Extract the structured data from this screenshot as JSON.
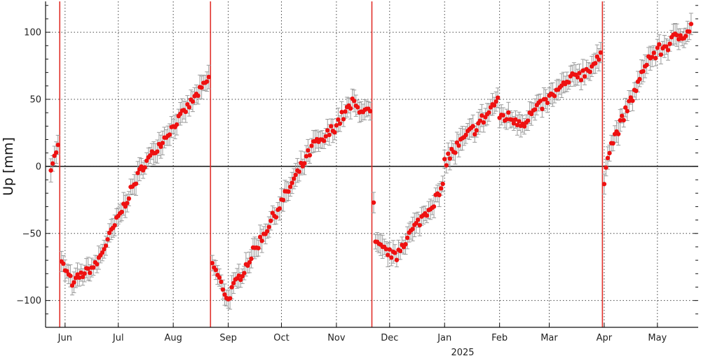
{
  "chart_data": {
    "type": "scatter",
    "title": "",
    "xlabel": "2025",
    "ylabel": "Up [mm]",
    "ylim": [
      -120,
      123
    ],
    "xlim": [
      "2024-05-21",
      "2025-05-24"
    ],
    "grid": true,
    "zero_line": true,
    "y_ticks": [
      {
        "value": 100,
        "label": "100"
      },
      {
        "value": 50,
        "label": "50"
      },
      {
        "value": 0,
        "label": "0"
      },
      {
        "value": -50,
        "label": "−50"
      },
      {
        "value": -100,
        "label": "−100"
      }
    ],
    "x_ticks": [
      {
        "date": "2024-06-01",
        "label": "Jun"
      },
      {
        "date": "2024-07-01",
        "label": "Jul"
      },
      {
        "date": "2024-08-01",
        "label": "Aug"
      },
      {
        "date": "2024-09-01",
        "label": "Sep"
      },
      {
        "date": "2024-10-01",
        "label": "Oct"
      },
      {
        "date": "2024-11-01",
        "label": "Nov"
      },
      {
        "date": "2024-12-01",
        "label": "Dec"
      },
      {
        "date": "2025-01-01",
        "label": "Jan"
      },
      {
        "date": "2025-02-01",
        "label": "Feb"
      },
      {
        "date": "2025-03-01",
        "label": "Mar"
      },
      {
        "date": "2025-04-01",
        "label": "Apr"
      },
      {
        "date": "2025-05-01",
        "label": "May"
      }
    ],
    "vertical_lines": [
      "2024-05-29",
      "2024-08-22",
      "2024-11-21",
      "2025-03-31"
    ],
    "colors": {
      "points": "#ee1111",
      "vlines": "#e0302a",
      "errorbars": "#9a9a9a",
      "grid": "#444444",
      "zero_line": "#111111"
    },
    "series": [
      {
        "segments": [
          {
            "x": [
              "2024-05-24",
              "2024-05-28"
            ],
            "y": [
              -1,
              15
            ],
            "noise": 2.0
          },
          {
            "x": [
              "2024-05-30",
              "2024-06-06"
            ],
            "y": [
              -72,
              -89
            ],
            "noise": 3.0
          },
          {
            "x": [
              "2024-06-07",
              "2024-06-18"
            ],
            "y": [
              -84,
              -74
            ],
            "noise": 3.0
          },
          {
            "x": [
              "2024-06-19",
              "2024-07-14"
            ],
            "y": [
              -72,
              -2
            ],
            "noise": 3.5
          },
          {
            "x": [
              "2024-07-15",
              "2024-08-21"
            ],
            "y": [
              0,
              65
            ],
            "noise": 3.0
          },
          {
            "x": [
              "2024-08-23",
              "2024-09-01"
            ],
            "y": [
              -72,
              -100
            ],
            "noise": 3.0
          },
          {
            "x": [
              "2024-09-02",
              "2024-10-21"
            ],
            "y": [
              -95,
              20
            ],
            "noise": 4.0
          },
          {
            "x": [
              "2024-10-22",
              "2024-11-11"
            ],
            "y": [
              15,
              48
            ],
            "noise": 4.5
          },
          {
            "x": [
              "2024-11-12",
              "2024-11-20"
            ],
            "y": [
              44,
              40
            ],
            "noise": 3.0
          },
          {
            "x": [
              "2024-11-22",
              "2024-11-22"
            ],
            "y": [
              -27,
              -27
            ],
            "noise": 0
          },
          {
            "x": [
              "2024-11-23",
              "2024-12-05"
            ],
            "y": [
              -58,
              -68
            ],
            "noise": 3.0
          },
          {
            "x": [
              "2024-12-06",
              "2024-12-31"
            ],
            "y": [
              -62,
              -17
            ],
            "noise": 4.0
          },
          {
            "x": [
              "2025-01-01",
              "2025-01-26"
            ],
            "y": [
              4,
              40
            ],
            "noise": 5.0
          },
          {
            "x": [
              "2025-01-27",
              "2025-01-31"
            ],
            "y": [
              44,
              49
            ],
            "noise": 2.5
          },
          {
            "x": [
              "2025-02-01",
              "2025-02-17"
            ],
            "y": [
              38,
              33
            ],
            "noise": 5.0
          },
          {
            "x": [
              "2025-02-18",
              "2025-03-18"
            ],
            "y": [
              38,
              70
            ],
            "noise": 4.0
          },
          {
            "x": [
              "2025-03-19",
              "2025-03-30"
            ],
            "y": [
              68,
              81
            ],
            "noise": 4.0
          },
          {
            "x": [
              "2025-04-01",
              "2025-04-02"
            ],
            "y": [
              -13,
              0
            ],
            "noise": 1.0
          },
          {
            "x": [
              "2025-04-03",
              "2025-04-23"
            ],
            "y": [
              10,
              70
            ],
            "noise": 4.0
          },
          {
            "x": [
              "2025-04-24",
              "2025-05-20"
            ],
            "y": [
              78,
              104
            ],
            "noise": 5.0
          }
        ]
      }
    ]
  }
}
